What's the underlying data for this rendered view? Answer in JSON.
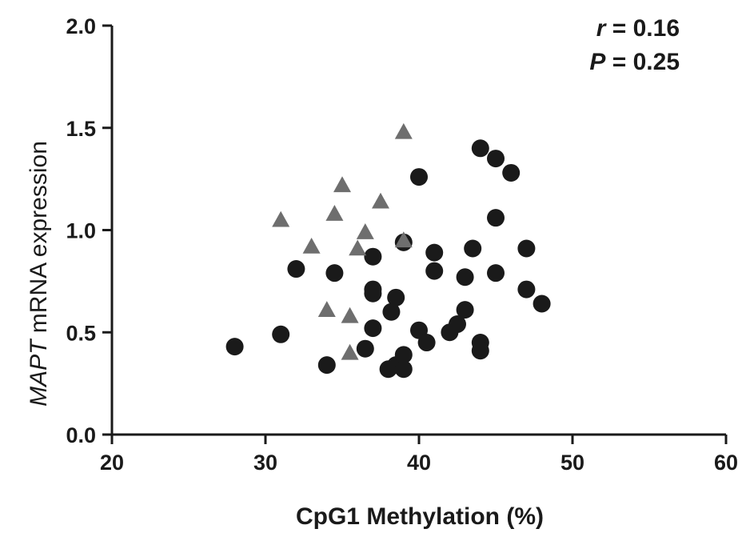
{
  "chart_data": {
    "type": "scatter",
    "xlabel": "CpG1 Methylation (%)",
    "ylabel_italic": "MAPT",
    "ylabel_rest": " mRNA expression",
    "xlim": [
      20,
      60
    ],
    "ylim": [
      0,
      2.0
    ],
    "xticks": [
      20,
      30,
      40,
      50,
      60
    ],
    "yticks": [
      0.0,
      0.5,
      1.0,
      1.5,
      2.0
    ],
    "ytick_labels": [
      "0.0",
      "0.5",
      "1.0",
      "1.5",
      "2.0"
    ],
    "grid": false,
    "annotations": {
      "r_symbol": "r",
      "r_text": " = 0.16",
      "p_symbol": "P",
      "p_text": " = 0.25"
    },
    "series": [
      {
        "marker": "circle",
        "color": "#1a1a1a",
        "points": [
          [
            28,
            0.43
          ],
          [
            31,
            0.49
          ],
          [
            32,
            0.81
          ],
          [
            34,
            0.34
          ],
          [
            34.5,
            0.79
          ],
          [
            36.5,
            0.42
          ],
          [
            37,
            0.52
          ],
          [
            37,
            0.69
          ],
          [
            37,
            0.71
          ],
          [
            37,
            0.87
          ],
          [
            38,
            0.32
          ],
          [
            38.2,
            0.6
          ],
          [
            38.5,
            0.67
          ],
          [
            38.5,
            0.34
          ],
          [
            39,
            0.39
          ],
          [
            39,
            0.32
          ],
          [
            39,
            0.94
          ],
          [
            40,
            0.51
          ],
          [
            40,
            1.26
          ],
          [
            40.5,
            0.45
          ],
          [
            41,
            0.89
          ],
          [
            41,
            0.8
          ],
          [
            42,
            0.5
          ],
          [
            42.5,
            0.54
          ],
          [
            43,
            0.61
          ],
          [
            43,
            0.77
          ],
          [
            43.5,
            0.91
          ],
          [
            44,
            0.45
          ],
          [
            44,
            0.41
          ],
          [
            44,
            1.4
          ],
          [
            45,
            1.35
          ],
          [
            45,
            1.06
          ],
          [
            45,
            0.79
          ],
          [
            46,
            1.28
          ],
          [
            47,
            0.91
          ],
          [
            47,
            0.71
          ],
          [
            48,
            0.64
          ]
        ]
      },
      {
        "marker": "triangle",
        "color": "#6e6e6e",
        "points": [
          [
            31,
            1.05
          ],
          [
            33,
            0.92
          ],
          [
            34,
            0.61
          ],
          [
            34.5,
            1.08
          ],
          [
            35,
            1.22
          ],
          [
            35.5,
            0.58
          ],
          [
            35.5,
            0.4
          ],
          [
            36,
            0.91
          ],
          [
            36.5,
            0.99
          ],
          [
            37.5,
            1.14
          ],
          [
            39,
            1.48
          ],
          [
            39,
            0.95
          ]
        ]
      }
    ]
  }
}
